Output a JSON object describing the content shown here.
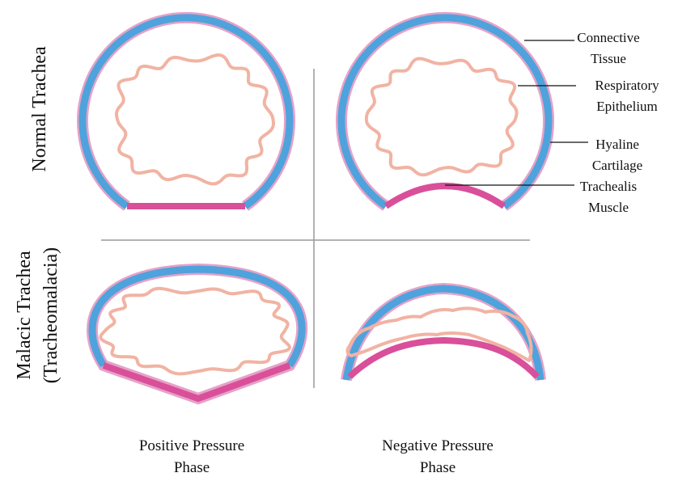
{
  "row_labels": [
    {
      "lines": [
        "Normal Trachea"
      ]
    },
    {
      "lines": [
        "Malacic Trachea",
        "(Tracheomalacia)"
      ]
    }
  ],
  "column_labels": [
    {
      "lines": [
        "Positive Pressure",
        "Phase"
      ]
    },
    {
      "lines": [
        "Negative Pressure",
        "Phase"
      ]
    }
  ],
  "annotations": [
    {
      "lines": [
        "Connective",
        "Tissue"
      ]
    },
    {
      "lines": [
        "Respiratory",
        "Epithelium"
      ]
    },
    {
      "lines": [
        "Hyaline",
        "Cartilage"
      ]
    },
    {
      "lines": [
        "Trachealis",
        "Muscle"
      ]
    }
  ]
}
